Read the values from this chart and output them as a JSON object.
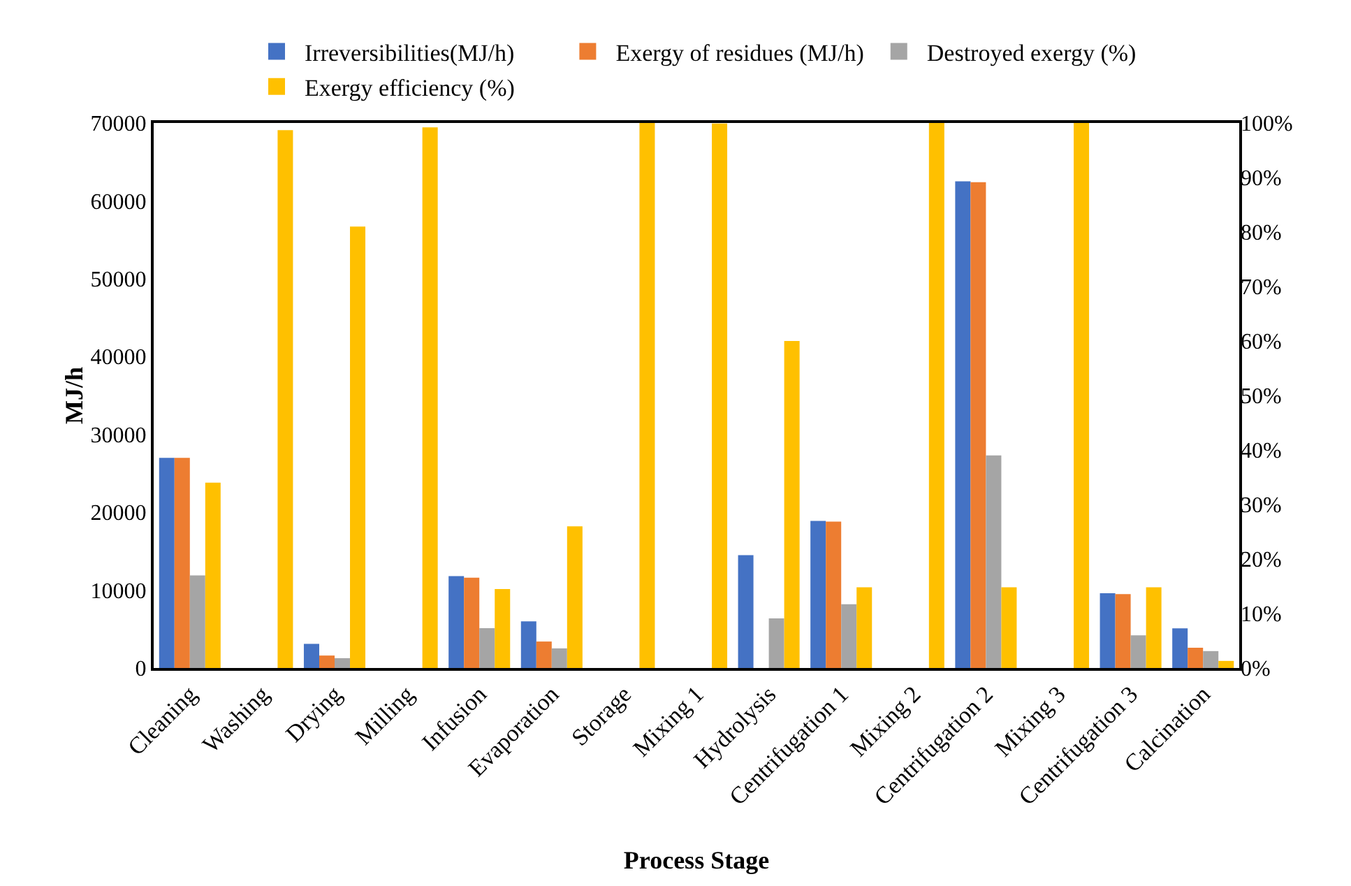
{
  "chart_data": {
    "type": "bar",
    "xlabel": "Process Stage",
    "ylabel": "MJ/h",
    "categories": [
      "Cleaning",
      "Washing",
      "Drying",
      "Milling",
      "Infusion",
      "Evaporation",
      "Storage",
      "Mixing 1",
      "Hydrolysis",
      "Centrifugation 1",
      "Mixing 2",
      "Centrifugation 2",
      "Mixing 3",
      "Centrifugation 3",
      "Calcination"
    ],
    "series": [
      {
        "name": "Irreversibilities(MJ/h)",
        "color": "#4472c4",
        "values": [
          27000,
          0,
          3100,
          0,
          11800,
          6000,
          0,
          0,
          14500,
          18900,
          0,
          62500,
          0,
          9600,
          5100
        ]
      },
      {
        "name": "Exergy of residues (MJ/h)",
        "color": "#ed7d31",
        "values": [
          27000,
          0,
          1600,
          0,
          11600,
          3400,
          0,
          0,
          0,
          18800,
          0,
          62400,
          0,
          9500,
          2600
        ]
      },
      {
        "name": "Destroyed exergy (%)",
        "color": "#a5a5a5",
        "axis": "y2",
        "values": [
          17,
          0,
          1.8,
          0,
          7.3,
          3.6,
          0,
          0,
          9.1,
          11.7,
          0,
          39,
          0,
          6,
          3.1
        ]
      },
      {
        "name": "Exergy efficiency (%)",
        "color": "#ffc000",
        "axis": "y2",
        "values": [
          34,
          98.7,
          81,
          99.2,
          14.5,
          26,
          100,
          99.9,
          60,
          14.8,
          100,
          14.8,
          100,
          14.8,
          1.3
        ]
      }
    ],
    "ylim": [
      0,
      70000
    ],
    "yticks": [
      0,
      10000,
      20000,
      30000,
      40000,
      50000,
      60000,
      70000
    ],
    "y2lim": [
      0,
      100
    ],
    "y2ticks": [
      {
        "value": 0,
        "label": "0%"
      },
      {
        "value": 10,
        "label": "10%"
      },
      {
        "value": 20,
        "label": "20%"
      },
      {
        "value": 30,
        "label": "30%"
      },
      {
        "value": 40,
        "label": "40%"
      },
      {
        "value": 50,
        "label": "50%"
      },
      {
        "value": 60,
        "label": "60%"
      },
      {
        "value": 70,
        "label": "70%"
      },
      {
        "value": 80,
        "label": "80%"
      },
      {
        "value": 90,
        "label": "90%"
      },
      {
        "value": 100,
        "label": "100%"
      }
    ],
    "grid": false,
    "legend": "top"
  }
}
